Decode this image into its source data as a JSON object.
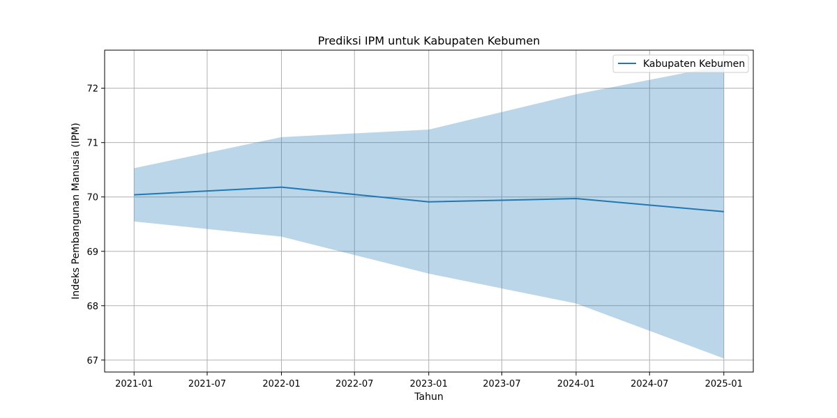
{
  "chart_data": {
    "type": "line",
    "title": "Prediksi IPM untuk Kabupaten Kebumen",
    "xlabel": "Tahun",
    "ylabel": "Indeks Pembangunan Manusia (IPM)",
    "x": [
      "2021-01-01",
      "2022-01-01",
      "2023-01-01",
      "2024-01-01",
      "2025-01-01"
    ],
    "series": [
      {
        "name": "Kabupaten Kebumen",
        "values": [
          70.04,
          70.18,
          69.91,
          69.97,
          69.73
        ],
        "lower": [
          69.55,
          69.27,
          68.59,
          68.04,
          67.03
        ],
        "upper": [
          70.53,
          71.1,
          71.24,
          71.89,
          72.42
        ]
      }
    ],
    "xlim": [
      "2020-10-20",
      "2025-03-15"
    ],
    "ylim": [
      66.78,
      72.7
    ],
    "x_ticks": [
      "2021-01",
      "2021-07",
      "2022-01",
      "2022-07",
      "2023-01",
      "2023-07",
      "2024-01",
      "2024-07",
      "2025-01"
    ],
    "x_tick_dates": [
      "2021-01-01",
      "2021-07-01",
      "2022-01-01",
      "2022-07-01",
      "2023-01-01",
      "2023-07-01",
      "2024-01-01",
      "2024-07-01",
      "2025-01-01"
    ],
    "y_ticks": [
      67,
      68,
      69,
      70,
      71,
      72
    ],
    "grid": true,
    "legend_position": "top-right",
    "colors": {
      "line": "#1f77b4",
      "band": "#1f77b4",
      "grid": "#b0b0b0"
    }
  }
}
